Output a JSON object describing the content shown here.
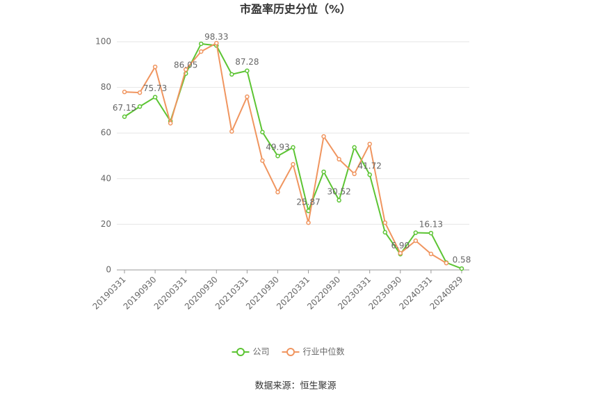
{
  "chart_data": {
    "type": "line",
    "title": "市盈率历史分位（%）",
    "categories": [
      "20190331",
      null,
      "20190930",
      null,
      "20200331",
      null,
      "20200930",
      null,
      "20210331",
      null,
      "20210930",
      null,
      "20220331",
      null,
      "20220930",
      null,
      "20230331",
      null,
      "20230930",
      null,
      "20240331",
      null,
      "20240829"
    ],
    "series": [
      {
        "name": "公司",
        "color": "#5cc433",
        "values": [
          67.15,
          71.6,
          75.73,
          65.2,
          86.05,
          99.1,
          98.33,
          85.7,
          87.28,
          60.4,
          49.93,
          53.7,
          25.87,
          43.0,
          30.52,
          53.7,
          41.72,
          16.5,
          6.9,
          16.3,
          16.13,
          3.2,
          0.58
        ],
        "value_labels": [
          "67.15",
          null,
          "75.73",
          null,
          "86.05",
          null,
          "98.33",
          null,
          "87.28",
          null,
          "49.93",
          null,
          "25.87",
          null,
          "30.52",
          null,
          "41.72",
          null,
          "6.90",
          null,
          "16.13",
          null,
          "0.58"
        ]
      },
      {
        "name": "行业中位数",
        "color": "#f0955f",
        "values": [
          78.0,
          77.7,
          89.0,
          64.3,
          87.8,
          95.7,
          99.4,
          60.7,
          75.9,
          47.9,
          34.1,
          46.3,
          20.7,
          58.5,
          48.5,
          42.1,
          55.2,
          20.7,
          7.3,
          12.8,
          7.0,
          3.0,
          null
        ]
      }
    ],
    "ylim": [
      0,
      100
    ],
    "yticks": [
      0,
      20,
      40,
      60,
      80,
      100
    ],
    "grid": true,
    "legend": "bottom",
    "source": "数据来源：恒生聚源"
  }
}
